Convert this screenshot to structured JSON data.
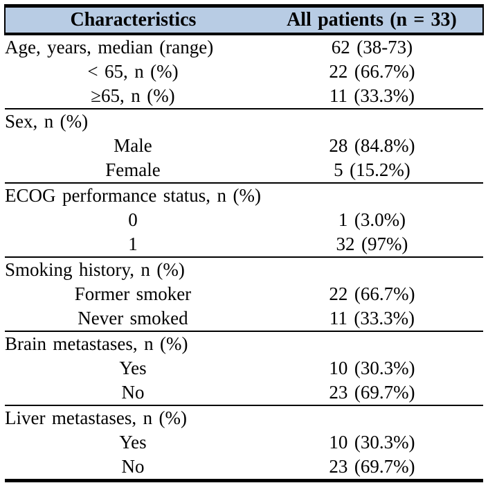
{
  "colors": {
    "header_bg": "#b8cce4",
    "border": "#000000",
    "text": "#000000"
  },
  "header": {
    "characteristics": "Characteristics",
    "all_patients": "All patients (n = 33)"
  },
  "sections": [
    {
      "rows": [
        {
          "label": "Age, years, median (range)",
          "value": "62 (38-73)",
          "align": "left"
        },
        {
          "label": "< 65, n (%)",
          "value": "22 (66.7%)",
          "align": "center"
        },
        {
          "label": "≥65, n (%)",
          "value": "11 (33.3%)",
          "align": "center"
        }
      ]
    },
    {
      "rows": [
        {
          "label": "Sex, n (%)",
          "value": "",
          "align": "left"
        },
        {
          "label": "Male",
          "value": "28 (84.8%)",
          "align": "center"
        },
        {
          "label": "Female",
          "value": "5 (15.2%)",
          "align": "center"
        }
      ]
    },
    {
      "rows": [
        {
          "label": "ECOG performance status, n (%)",
          "value": "",
          "align": "left"
        },
        {
          "label": "0",
          "value": "1 (3.0%)",
          "align": "center"
        },
        {
          "label": "1",
          "value": "32 (97%)",
          "align": "center"
        }
      ]
    },
    {
      "rows": [
        {
          "label": "Smoking history, n (%)",
          "value": "",
          "align": "left"
        },
        {
          "label": "Former smoker",
          "value": "22 (66.7%)",
          "align": "center"
        },
        {
          "label": "Never smoked",
          "value": "11 (33.3%)",
          "align": "center"
        }
      ]
    },
    {
      "rows": [
        {
          "label": "Brain metastases, n (%)",
          "value": "",
          "align": "left"
        },
        {
          "label": "Yes",
          "value": "10 (30.3%)",
          "align": "center"
        },
        {
          "label": "No",
          "value": "23 (69.7%)",
          "align": "center"
        }
      ]
    },
    {
      "rows": [
        {
          "label": "Liver metastases, n (%)",
          "value": "",
          "align": "left"
        },
        {
          "label": "Yes",
          "value": "10 (30.3%)",
          "align": "center"
        },
        {
          "label": "No",
          "value": "23 (69.7%)",
          "align": "center"
        }
      ]
    }
  ]
}
